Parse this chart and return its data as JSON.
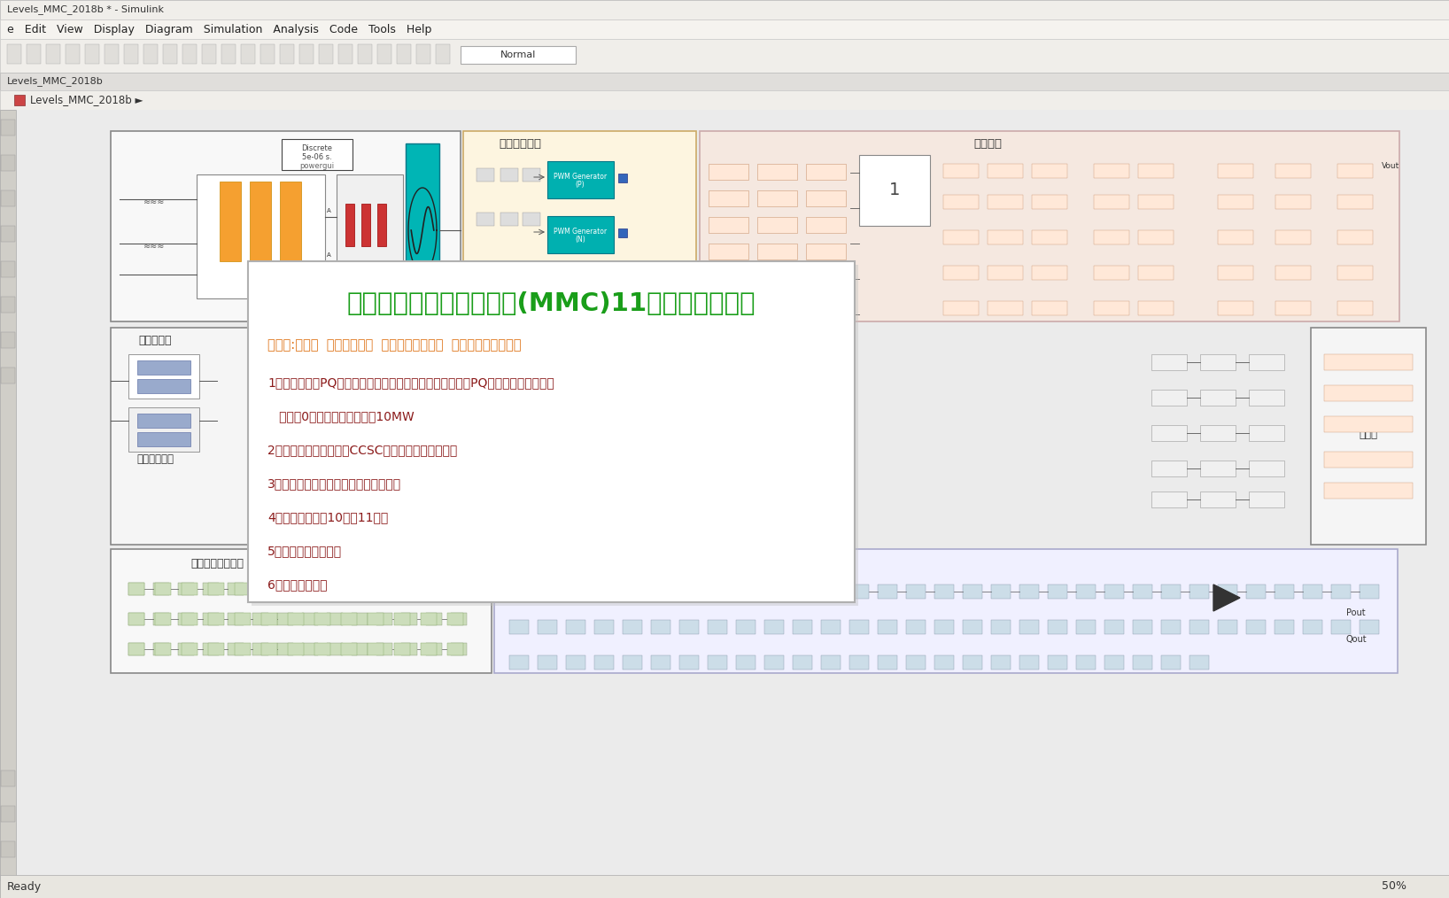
{
  "title_text": "三相模块化多电平换流器(MMC)11电平逆变器并网",
  "title_color": "#1a9e1a",
  "keywords_text": "关键词:双闭环  载波移相调制  电容电压均衡控制  二倍频环流抑制控制",
  "keywords_color": "#e07820",
  "bullet_points": [
    "1、控制：外环PQ控制，并网电流内环控制，双闭环控制。PQ控制，给定并网功率",
    "   无功为0，波形好。有功额定10MW",
    "2、采用负序环流抑制（CCSC）抑制桥臂二倍频环流",
    "3、电容电压均衡控制，均压效果良好。",
    "4、桥臂子模块为10个，11电平",
    "5、采用载波移相调制",
    "6、提供参考资料"
  ],
  "bullet_color": "#8b1a1a",
  "bg_main": "#d4d0c8",
  "bg_canvas": "#ebebeb",
  "bg_white": "#ffffff",
  "bg_toolbar": "#f0eeea",
  "title_bar_color": "#f0eeea",
  "menu_bar_color": "#f5f3ef",
  "sidebar_color": "#d0cec8",
  "status_bar_color": "#e8e6e0",
  "window_title": "Levels_MMC_2018b * - Simulink",
  "menu_text": "e   Edit   View   Display   Diagram   Simulation   Analysis   Code   Tools   Help",
  "tab_label": "Levels_MMC_2018b",
  "breadcrumb": "Levels_MMC_2018b ►",
  "status_left": "Ready",
  "status_right": "50%",
  "orange_color": "#f5a030",
  "red_block_color": "#cc3333",
  "teal_color": "#00b5b5",
  "pink_bg": "#f5e8e0",
  "light_yellow_bg": "#fdf5e0",
  "light_green_bg": "#e8f0e8",
  "pwm_teal": "#00b0b0",
  "blue_small": "#3366bb",
  "overlay_shadow": "#c0c0c0",
  "overlay_border": "#b0b0b0"
}
